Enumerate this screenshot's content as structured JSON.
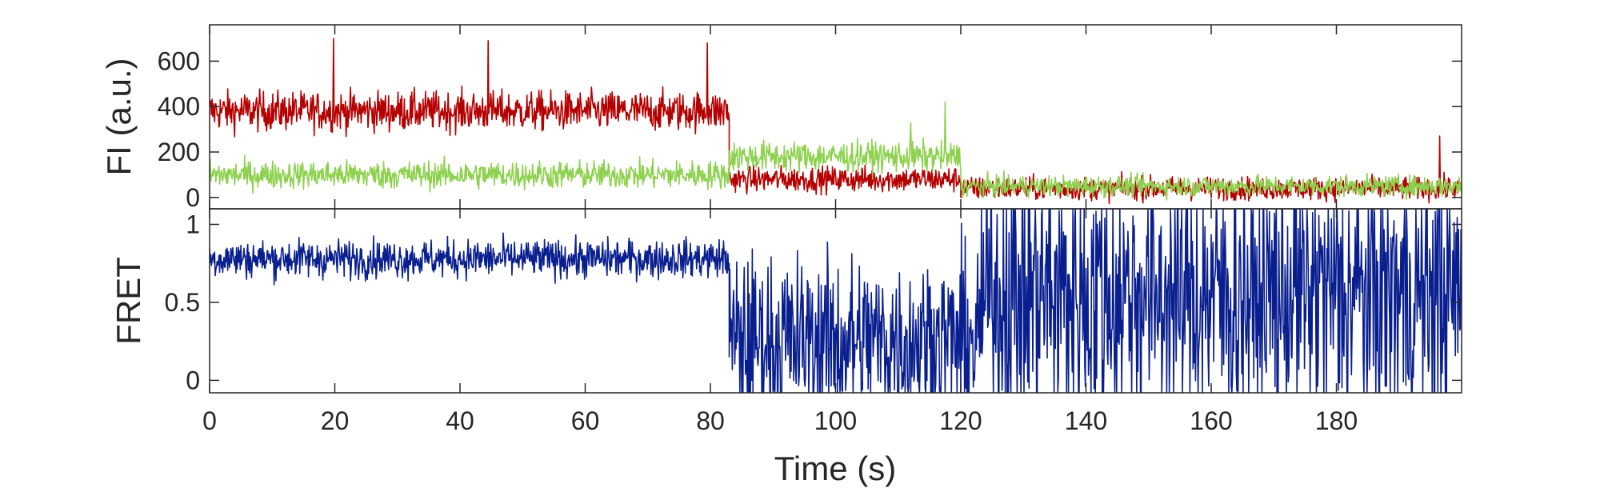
{
  "colors": {
    "acceptor": "#b40000",
    "donor": "#8ed14f",
    "fret": "#0a1f8f",
    "axis": "#262626"
  },
  "chart_data": [
    {
      "id": "fluorescence",
      "type": "line",
      "ylabel": "FI (a.u.)",
      "xlim": [
        0,
        200
      ],
      "ylim": [
        -50,
        760
      ],
      "yticks": [
        0,
        200,
        400,
        600
      ],
      "ytick_labels": [
        "0",
        "200",
        "400",
        "600"
      ],
      "grid": false,
      "series": [
        {
          "color_key": "acceptor",
          "segments": [
            {
              "x_start": 0,
              "x_end": 83,
              "mean": 380,
              "noise": 85
            },
            {
              "x_start": 83,
              "x_end": 120,
              "mean": 80,
              "noise": 55
            },
            {
              "x_start": 120,
              "x_end": 200,
              "mean": 40,
              "noise": 50
            }
          ],
          "peaks": [
            {
              "x": 19.8,
              "y": 700
            },
            {
              "x": 44.5,
              "y": 690
            },
            {
              "x": 79.5,
              "y": 680
            },
            {
              "x": 196.5,
              "y": 270
            }
          ]
        },
        {
          "color_key": "donor",
          "segments": [
            {
              "x_start": 0,
              "x_end": 83,
              "mean": 100,
              "noise": 60
            },
            {
              "x_start": 83,
              "x_end": 120,
              "mean": 180,
              "noise": 65
            },
            {
              "x_start": 120,
              "x_end": 200,
              "mean": 50,
              "noise": 45
            }
          ],
          "peaks": [
            {
              "x": 117.5,
              "y": 420
            },
            {
              "x": 112.0,
              "y": 330
            }
          ]
        }
      ]
    },
    {
      "id": "fret",
      "type": "line",
      "ylabel": "FRET",
      "xlabel": "Time (s)",
      "xlim": [
        0,
        200
      ],
      "ylim": [
        -0.08,
        1.1
      ],
      "yticks": [
        0,
        0.5,
        1
      ],
      "ytick_labels": [
        "0",
        "0.5",
        "1"
      ],
      "xticks": [
        0,
        20,
        40,
        60,
        80,
        100,
        120,
        140,
        160,
        180
      ],
      "xtick_labels": [
        "0",
        "20",
        "40",
        "60",
        "80",
        "100",
        "120",
        "140",
        "160",
        "180"
      ],
      "grid": false,
      "series": [
        {
          "color_key": "fret",
          "segments": [
            {
              "x_start": 0,
              "x_end": 83,
              "mean": 0.78,
              "noise": 0.12
            },
            {
              "x_start": 83,
              "x_end": 123,
              "mean": 0.25,
              "noise": 0.55
            },
            {
              "x_start": 123,
              "x_end": 200,
              "mean": 0.55,
              "noise": 0.9
            }
          ],
          "clip": [
            -0.08,
            1.1
          ]
        }
      ]
    }
  ]
}
